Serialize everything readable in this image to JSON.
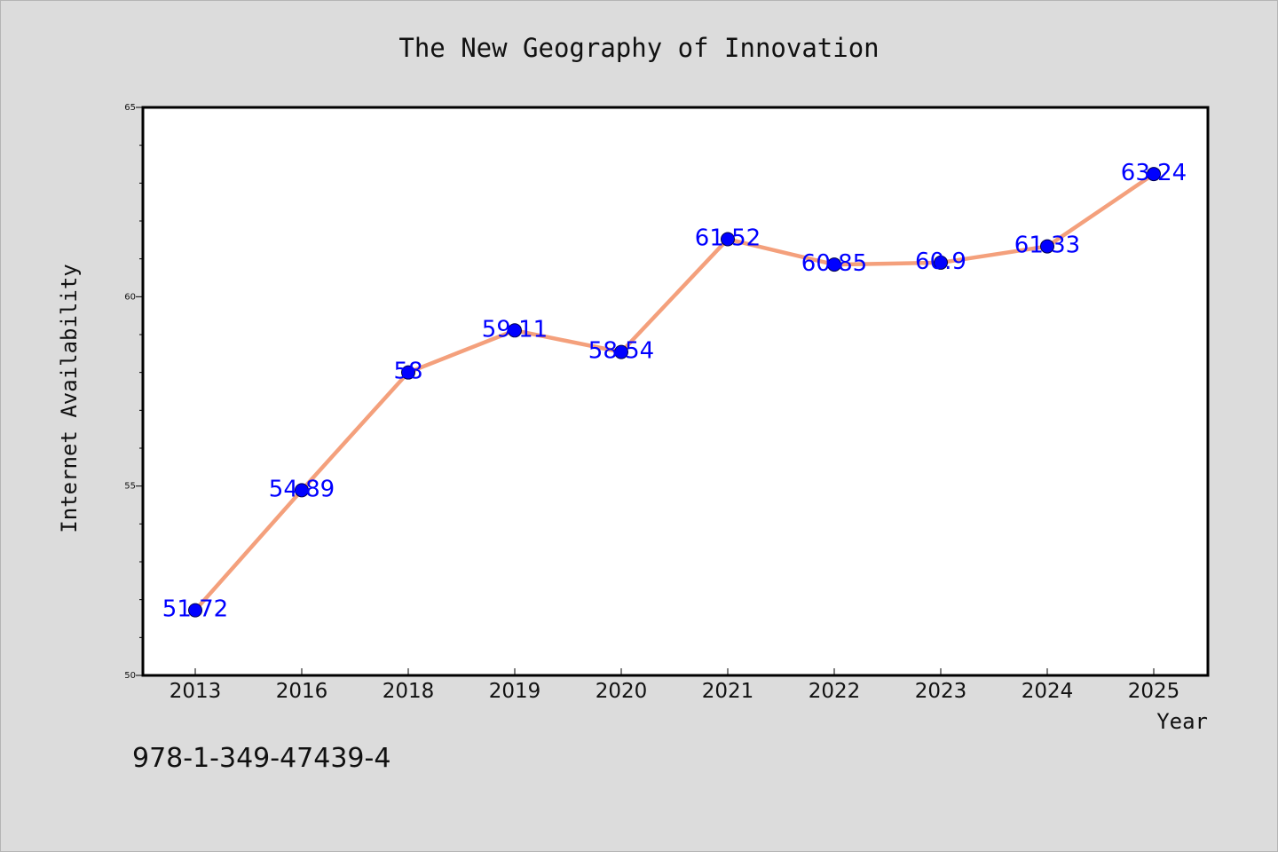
{
  "chart_data": {
    "type": "line",
    "title": "The New Geography of Innovation",
    "xlabel": "Year",
    "ylabel": "Internet Availability",
    "categories": [
      "2013",
      "2016",
      "2018",
      "2019",
      "2020",
      "2021",
      "2022",
      "2023",
      "2024",
      "2025"
    ],
    "series": [
      {
        "values": [
          51.72,
          54.89,
          58,
          59.11,
          58.54,
          61.52,
          60.85,
          60.9,
          61.33,
          63.24
        ],
        "labels": [
          "51.72",
          "54.89",
          "58",
          "59.11",
          "58.54",
          "61.52",
          "60.85",
          "60.9",
          "61.33",
          "63.24"
        ],
        "line_color": "#f4a07c",
        "marker_color": "#0000ff"
      }
    ],
    "ylim": [
      50,
      65
    ],
    "yticks": [
      "50",
      "55",
      "60",
      "65"
    ],
    "grid": false,
    "legend": "none"
  },
  "footer": {
    "isbn": "978-1-349-47439-4"
  },
  "colors": {
    "background": "#dcdcdc",
    "plot_background": "#ffffff",
    "line": "#f4a07c",
    "marker": "#0000ff",
    "data_label": "#0000ff"
  }
}
